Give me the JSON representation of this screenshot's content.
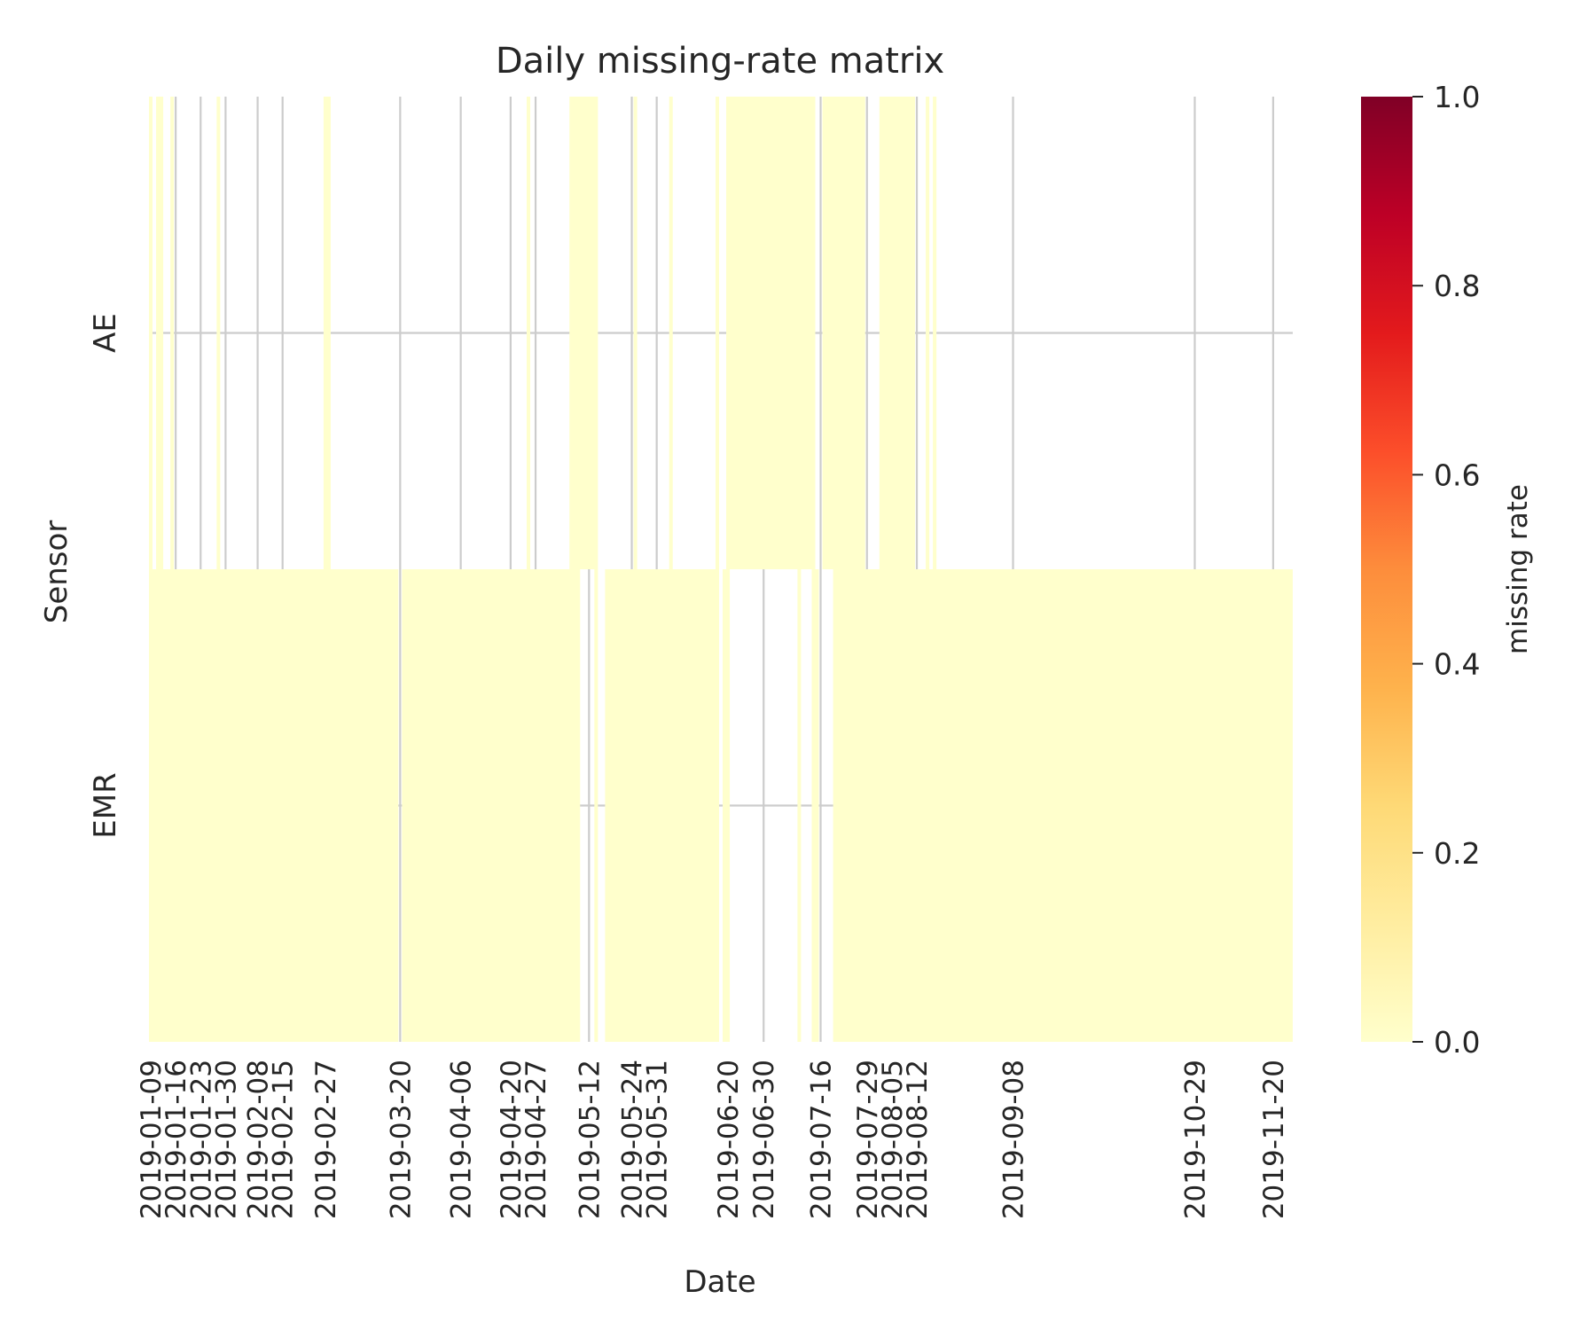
{
  "chart_data": {
    "type": "heatmap",
    "title": "Daily missing-rate matrix",
    "xlabel": "Date",
    "ylabel": "Sensor",
    "rows": [
      "AE",
      "EMR"
    ],
    "x_tick_labels": [
      "2019-01-09",
      "2019-01-16",
      "2019-01-23",
      "2019-01-30",
      "2019-02-08",
      "2019-02-15",
      "2019-02-27",
      "2019-03-20",
      "2019-04-06",
      "2019-04-20",
      "2019-04-27",
      "2019-05-12",
      "2019-05-24",
      "2019-05-31",
      "2019-06-20",
      "2019-06-30",
      "2019-07-16",
      "2019-07-29",
      "2019-08-05",
      "2019-08-12",
      "2019-09-08",
      "2019-10-29",
      "2019-11-20"
    ],
    "present_spans": {
      "AE": [
        [
          "2019-01-09",
          "2019-01-09"
        ],
        [
          "2019-01-11",
          "2019-01-12"
        ],
        [
          "2019-01-15",
          "2019-01-15"
        ],
        [
          "2019-01-28",
          "2019-01-28"
        ],
        [
          "2019-02-27",
          "2019-02-28"
        ],
        [
          "2019-04-25",
          "2019-04-25"
        ],
        [
          "2019-05-07",
          "2019-05-14"
        ],
        [
          "2019-05-25",
          "2019-05-25"
        ],
        [
          "2019-06-04",
          "2019-06-04"
        ],
        [
          "2019-06-17",
          "2019-06-17"
        ],
        [
          "2019-06-20",
          "2019-07-14"
        ],
        [
          "2019-07-17",
          "2019-07-28"
        ],
        [
          "2019-08-02",
          "2019-08-11"
        ],
        [
          "2019-08-15",
          "2019-08-15"
        ],
        [
          "2019-08-17",
          "2019-08-17"
        ]
      ],
      "EMR": [
        [
          "2019-01-09",
          "2019-03-19"
        ],
        [
          "2019-03-21",
          "2019-05-09"
        ],
        [
          "2019-05-14",
          "2019-05-14"
        ],
        [
          "2019-05-17",
          "2019-06-17"
        ],
        [
          "2019-06-19",
          "2019-06-20"
        ],
        [
          "2019-07-10",
          "2019-07-10"
        ],
        [
          "2019-07-14",
          "2019-07-15"
        ],
        [
          "2019-07-20",
          "2019-11-25"
        ]
      ]
    },
    "values_in_present_cells": 0.0,
    "colorbar": {
      "label": "missing rate",
      "range": [
        0.0,
        1.0
      ],
      "ticks": [
        "0.0",
        "0.2",
        "0.4",
        "0.6",
        "0.8",
        "1.0"
      ],
      "colormap": [
        "#ffffcc",
        "#ffeda0",
        "#fed976",
        "#feb24c",
        "#fd8d3c",
        "#fc4e2a",
        "#e31a1c",
        "#bd0026",
        "#800026"
      ]
    },
    "grid": true,
    "grid_color": "#cccccc",
    "missing_day_color": "#ffffff"
  }
}
